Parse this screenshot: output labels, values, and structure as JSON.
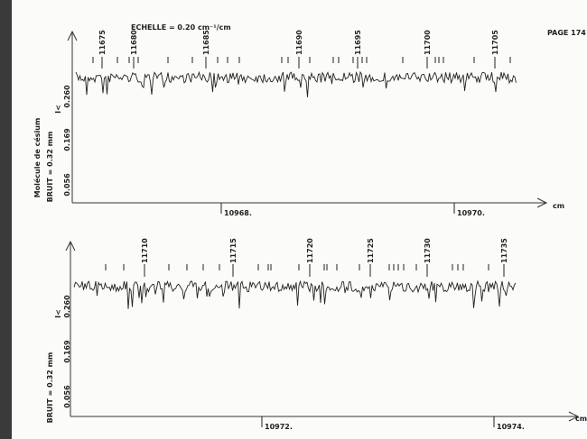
{
  "header": {
    "page": "PAGE 174",
    "scale": "ECHELLE = 0.20 cm⁻¹/cm"
  },
  "side_label": "Molécule de césium",
  "panels": [
    {
      "noise": "BRUIT = 0.32 mm",
      "marker": "I<",
      "levels": [
        "0.260",
        "0.169",
        "0.056"
      ],
      "line_numbers": [
        "11675",
        "11680",
        "11685",
        "11690",
        "11695",
        "11700",
        "11705"
      ],
      "x_labels": [
        "10968.",
        "10970."
      ],
      "unit": "cm"
    },
    {
      "noise": "BRUIT = 0.32 mm",
      "marker": "I<",
      "levels": [
        "0.260",
        "0.169",
        "0.056"
      ],
      "line_numbers": [
        "11710",
        "11715",
        "11720",
        "11725",
        "11730",
        "11735"
      ],
      "x_labels": [
        "10972.",
        "10974."
      ],
      "unit": "cm"
    }
  ]
}
